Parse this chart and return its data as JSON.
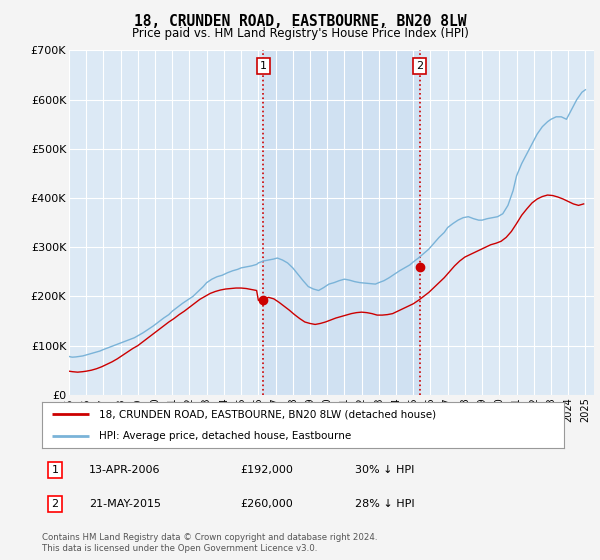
{
  "title": "18, CRUNDEN ROAD, EASTBOURNE, BN20 8LW",
  "subtitle": "Price paid vs. HM Land Registry's House Price Index (HPI)",
  "ylim": [
    0,
    700000
  ],
  "yticks": [
    0,
    100000,
    200000,
    300000,
    400000,
    500000,
    600000,
    700000
  ],
  "ytick_labels": [
    "£0",
    "£100K",
    "£200K",
    "£300K",
    "£400K",
    "£500K",
    "£600K",
    "£700K"
  ],
  "fig_bg_color": "#f4f4f4",
  "plot_bg_color": "#dce9f5",
  "grid_color": "#ffffff",
  "hpi_color": "#7ab3d8",
  "price_color": "#cc0000",
  "marker_color": "#cc0000",
  "vline_color": "#cc0000",
  "shade_color": "#c8ddf0",
  "legend_line1": "18, CRUNDEN ROAD, EASTBOURNE, BN20 8LW (detached house)",
  "legend_line2": "HPI: Average price, detached house, Eastbourne",
  "table_rows": [
    {
      "num": "1",
      "date": "13-APR-2006",
      "price": "£192,000",
      "hpi": "30% ↓ HPI"
    },
    {
      "num": "2",
      "date": "21-MAY-2015",
      "price": "£260,000",
      "hpi": "28% ↓ HPI"
    }
  ],
  "footer": "Contains HM Land Registry data © Crown copyright and database right 2024.\nThis data is licensed under the Open Government Licence v3.0.",
  "sale1_x": 2006.29,
  "sale1_y": 192000,
  "sale2_x": 2015.38,
  "sale2_y": 260000,
  "xmin": 1995,
  "xmax": 2025.5,
  "hpi_years": [
    1995.0,
    1995.1,
    1995.2,
    1995.4,
    1995.6,
    1995.8,
    1996.0,
    1996.2,
    1996.4,
    1996.6,
    1996.8,
    1997.0,
    1997.3,
    1997.6,
    1997.9,
    1998.2,
    1998.5,
    1998.8,
    1999.0,
    1999.3,
    1999.6,
    1999.9,
    2000.2,
    2000.5,
    2000.8,
    2001.0,
    2001.3,
    2001.6,
    2001.9,
    2002.2,
    2002.5,
    2002.8,
    2003.0,
    2003.3,
    2003.6,
    2003.9,
    2004.2,
    2004.5,
    2004.8,
    2005.0,
    2005.3,
    2005.6,
    2005.9,
    2006.0,
    2006.3,
    2006.6,
    2006.9,
    2007.1,
    2007.4,
    2007.7,
    2008.0,
    2008.3,
    2008.6,
    2008.9,
    2009.2,
    2009.5,
    2009.8,
    2010.1,
    2010.4,
    2010.7,
    2011.0,
    2011.3,
    2011.6,
    2011.9,
    2012.2,
    2012.5,
    2012.8,
    2013.0,
    2013.3,
    2013.6,
    2013.9,
    2014.2,
    2014.5,
    2014.8,
    2015.0,
    2015.3,
    2015.6,
    2015.9,
    2016.2,
    2016.5,
    2016.8,
    2017.0,
    2017.3,
    2017.6,
    2017.9,
    2018.2,
    2018.5,
    2018.8,
    2019.0,
    2019.3,
    2019.6,
    2019.9,
    2020.2,
    2020.5,
    2020.8,
    2021.0,
    2021.3,
    2021.6,
    2021.9,
    2022.2,
    2022.5,
    2022.8,
    2023.0,
    2023.3,
    2023.6,
    2023.9,
    2024.2,
    2024.5,
    2024.8,
    2025.0
  ],
  "hpi_vals": [
    78000,
    77000,
    76500,
    77000,
    78000,
    79000,
    81000,
    83000,
    85000,
    87000,
    89000,
    92000,
    96000,
    100000,
    104000,
    108000,
    112000,
    116000,
    120000,
    126000,
    133000,
    140000,
    148000,
    156000,
    163000,
    170000,
    178000,
    186000,
    193000,
    200000,
    210000,
    220000,
    228000,
    235000,
    240000,
    243000,
    248000,
    252000,
    255000,
    258000,
    260000,
    262000,
    265000,
    268000,
    272000,
    274000,
    276000,
    278000,
    274000,
    268000,
    258000,
    245000,
    232000,
    220000,
    215000,
    212000,
    218000,
    225000,
    228000,
    232000,
    235000,
    233000,
    230000,
    228000,
    227000,
    226000,
    225000,
    228000,
    232000,
    238000,
    245000,
    252000,
    258000,
    264000,
    270000,
    278000,
    287000,
    296000,
    308000,
    320000,
    330000,
    340000,
    348000,
    355000,
    360000,
    362000,
    358000,
    355000,
    355000,
    358000,
    360000,
    362000,
    368000,
    385000,
    415000,
    445000,
    470000,
    490000,
    510000,
    530000,
    545000,
    555000,
    560000,
    565000,
    565000,
    560000,
    580000,
    600000,
    615000,
    620000
  ],
  "price_years": [
    1995.0,
    1995.2,
    1995.5,
    1995.8,
    1996.0,
    1996.3,
    1996.6,
    1996.9,
    1997.2,
    1997.5,
    1997.8,
    1998.1,
    1998.4,
    1998.7,
    1999.0,
    1999.3,
    1999.6,
    1999.9,
    2000.2,
    2000.5,
    2000.8,
    2001.1,
    2001.4,
    2001.7,
    2002.0,
    2002.3,
    2002.6,
    2002.9,
    2003.2,
    2003.5,
    2003.8,
    2004.1,
    2004.4,
    2004.7,
    2005.0,
    2005.3,
    2005.6,
    2005.9,
    2006.0,
    2006.3,
    2006.6,
    2006.9,
    2007.2,
    2007.5,
    2007.8,
    2008.1,
    2008.4,
    2008.7,
    2009.0,
    2009.3,
    2009.6,
    2009.9,
    2010.2,
    2010.5,
    2010.8,
    2011.1,
    2011.4,
    2011.7,
    2012.0,
    2012.3,
    2012.6,
    2012.9,
    2013.2,
    2013.5,
    2013.8,
    2014.1,
    2014.4,
    2014.7,
    2015.0,
    2015.3,
    2015.6,
    2015.9,
    2016.2,
    2016.5,
    2016.8,
    2017.1,
    2017.4,
    2017.7,
    2018.0,
    2018.3,
    2018.6,
    2018.9,
    2019.2,
    2019.5,
    2019.8,
    2020.1,
    2020.4,
    2020.7,
    2021.0,
    2021.3,
    2021.6,
    2021.9,
    2022.2,
    2022.5,
    2022.8,
    2023.1,
    2023.4,
    2023.7,
    2024.0,
    2024.3,
    2024.6,
    2024.9
  ],
  "price_vals": [
    48000,
    47000,
    46000,
    47000,
    48000,
    50000,
    53000,
    57000,
    62000,
    67000,
    73000,
    80000,
    87000,
    94000,
    100000,
    108000,
    116000,
    124000,
    132000,
    140000,
    148000,
    155000,
    163000,
    170000,
    178000,
    186000,
    194000,
    200000,
    206000,
    210000,
    213000,
    215000,
    216000,
    217000,
    217000,
    216000,
    214000,
    212000,
    192000,
    195000,
    198000,
    195000,
    188000,
    180000,
    172000,
    163000,
    155000,
    148000,
    145000,
    143000,
    145000,
    148000,
    152000,
    156000,
    159000,
    162000,
    165000,
    167000,
    168000,
    167000,
    165000,
    162000,
    162000,
    163000,
    165000,
    170000,
    175000,
    180000,
    185000,
    192000,
    200000,
    208000,
    218000,
    228000,
    238000,
    250000,
    262000,
    272000,
    280000,
    285000,
    290000,
    295000,
    300000,
    305000,
    308000,
    312000,
    320000,
    332000,
    348000,
    365000,
    378000,
    390000,
    398000,
    403000,
    406000,
    405000,
    402000,
    398000,
    393000,
    388000,
    385000,
    388000
  ]
}
